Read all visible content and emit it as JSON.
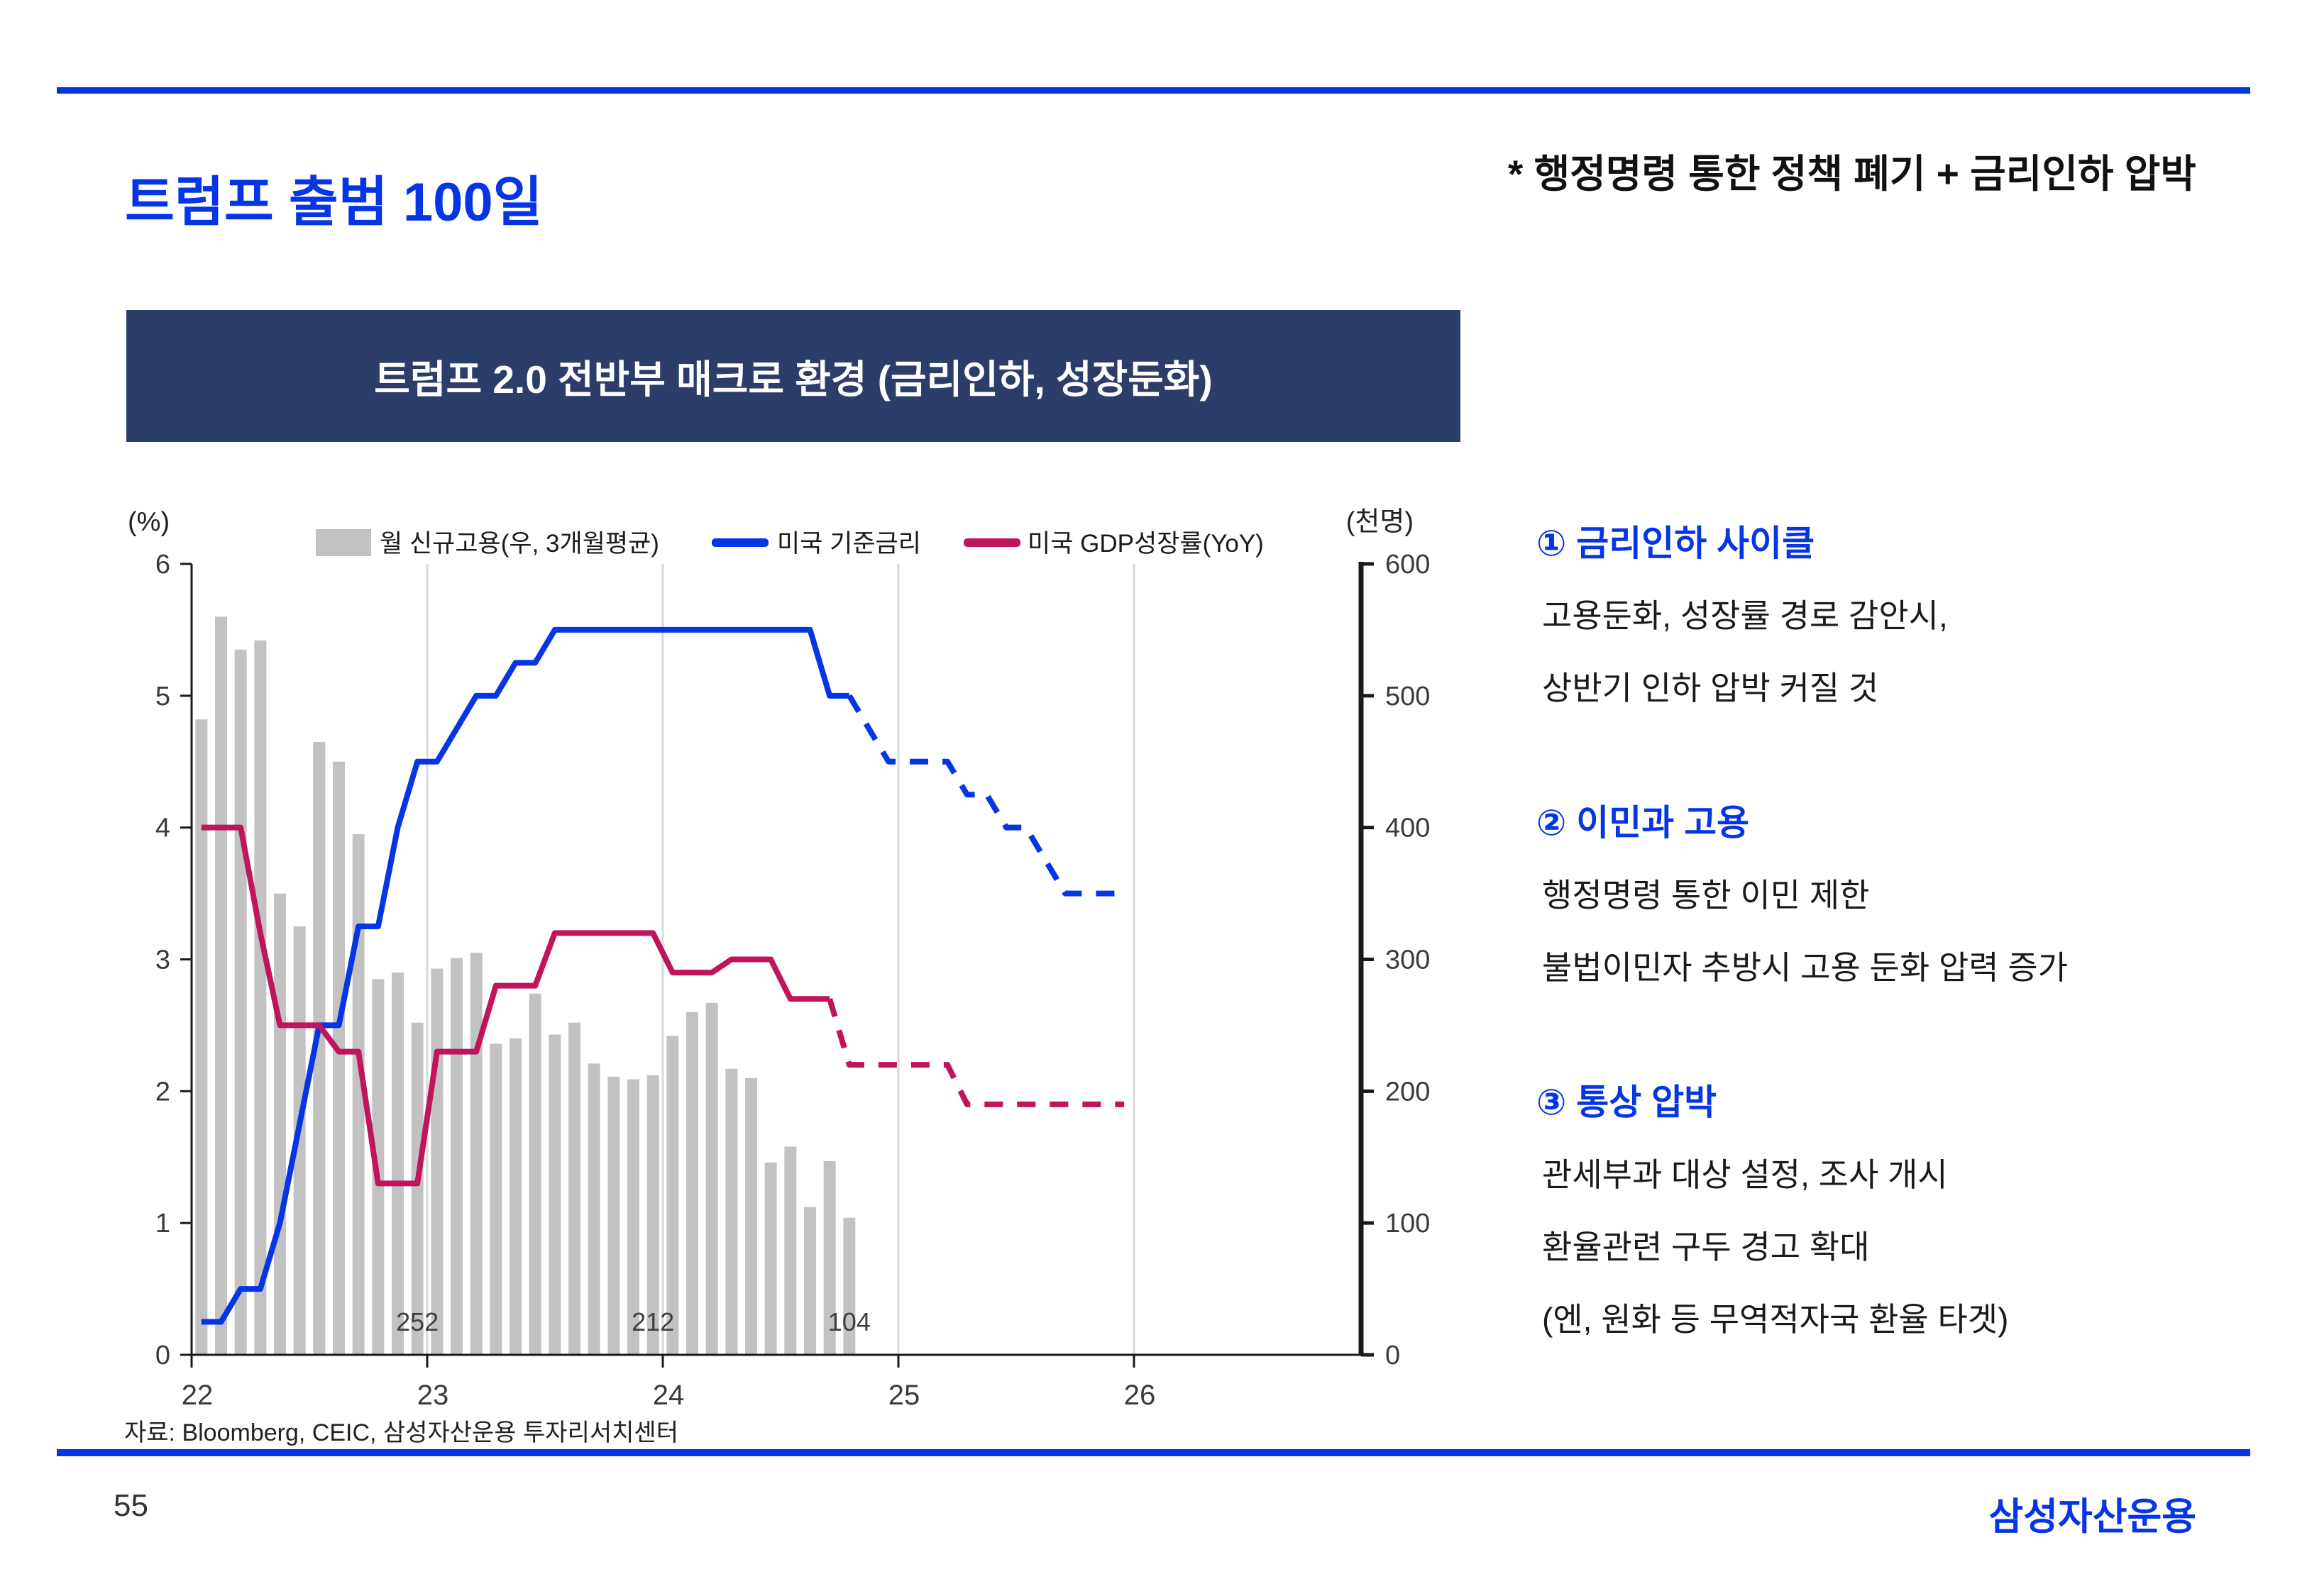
{
  "page": {
    "number": "55"
  },
  "header": {
    "title": "트럼프 출범 100일",
    "subtitle": "* 행정명령 통한 정책 폐기 + 금리인하 압박"
  },
  "chart_box_title": "트럼프 2.0 전반부 매크로 환경 (금리인하, 성장둔화)",
  "notes": {
    "sections": [
      {
        "heading": "① 금리인하 사이클",
        "lines": [
          "고용둔화, 성장률 경로 감안시,",
          "상반기 인하 압박 커질 것"
        ]
      },
      {
        "heading": "② 이민과 고용",
        "lines": [
          "행정명령 통한 이민 제한",
          "불법이민자 추방시 고용 둔화 압력 증가"
        ]
      },
      {
        "heading": "③ 통상 압박",
        "lines": [
          "관세부과 대상 설정, 조사 개시",
          "환율관련 구두 경고 확대",
          "(엔, 원화 등 무역적자국 환율 타겟)"
        ]
      }
    ]
  },
  "footer": {
    "source": "자료: Bloomberg, CEIC, 삼성자산운용 투자리서치센터",
    "logo": "삼성자산운용"
  },
  "colors": {
    "accent_blue": "#0535e4",
    "crimson": "#c0145c",
    "navy_box": "#2b3e69",
    "bar_gray": "#c2c2c2",
    "gridline": "#d9d9d9",
    "tick_text": "#3a3a3a"
  },
  "chart_data": {
    "type": "combo",
    "title": "트럼프 2.0 전반부 매크로 환경 (금리인하, 성장둔화)",
    "x_unit": "month",
    "x_range": [
      "2022-01",
      "2025-12"
    ],
    "x_tick_labels": [
      "22",
      "23",
      "24",
      "25",
      "26"
    ],
    "grid": "vertical-year-gridlines",
    "legend_position": "top",
    "left_axis": {
      "label": "(%)",
      "min": 0,
      "max": 6,
      "ticks": [
        0,
        1,
        2,
        3,
        4,
        5,
        6
      ]
    },
    "right_axis": {
      "label": "(천명)",
      "min": 0,
      "max": 600,
      "ticks": [
        0,
        100,
        200,
        300,
        400,
        500,
        600
      ]
    },
    "series": [
      {
        "name": "월 신규고용(우, 3개월평균)",
        "type": "bar",
        "axis": "right",
        "color": "#c2c2c2",
        "values": [
          482,
          560,
          535,
          542,
          350,
          325,
          465,
          450,
          395,
          285,
          290,
          252,
          293,
          301,
          305,
          236,
          240,
          274,
          243,
          252,
          221,
          211,
          209,
          212,
          242,
          260,
          267,
          217,
          210,
          146,
          158,
          112,
          147,
          104
        ]
      },
      {
        "name": "미국 기준금리",
        "type": "line",
        "axis": "left",
        "color": "#0535e4",
        "solid_until_index": 33,
        "values": [
          0.25,
          0.25,
          0.5,
          0.5,
          1.0,
          1.75,
          2.5,
          2.5,
          3.25,
          3.25,
          4.0,
          4.5,
          4.5,
          4.75,
          5.0,
          5.0,
          5.25,
          5.25,
          5.5,
          5.5,
          5.5,
          5.5,
          5.5,
          5.5,
          5.5,
          5.5,
          5.5,
          5.5,
          5.5,
          5.5,
          5.5,
          5.5,
          5.0,
          5.0,
          4.75,
          4.5,
          4.5,
          4.5,
          4.5,
          4.25,
          4.25,
          4.0,
          4.0,
          3.75,
          3.5,
          3.5,
          3.5,
          3.5
        ]
      },
      {
        "name": "미국 GDP성장률(YoY)",
        "type": "line",
        "axis": "left",
        "color": "#c0145c",
        "solid_until_index": 32,
        "values": [
          4.0,
          4.0,
          4.0,
          3.2,
          2.5,
          2.5,
          2.5,
          2.3,
          2.3,
          1.3,
          1.3,
          1.3,
          2.3,
          2.3,
          2.3,
          2.8,
          2.8,
          2.8,
          3.2,
          3.2,
          3.2,
          3.2,
          3.2,
          3.2,
          2.9,
          2.9,
          2.9,
          3.0,
          3.0,
          3.0,
          2.7,
          2.7,
          2.7,
          2.2,
          2.2,
          2.2,
          2.2,
          2.2,
          2.2,
          1.9,
          1.9,
          1.9,
          1.9,
          1.9,
          1.9,
          1.9,
          1.9,
          1.9
        ]
      }
    ],
    "annotations": [
      {
        "index": 11,
        "text": "252"
      },
      {
        "index": 23,
        "text": "212"
      },
      {
        "index": 33,
        "text": "104"
      }
    ]
  }
}
